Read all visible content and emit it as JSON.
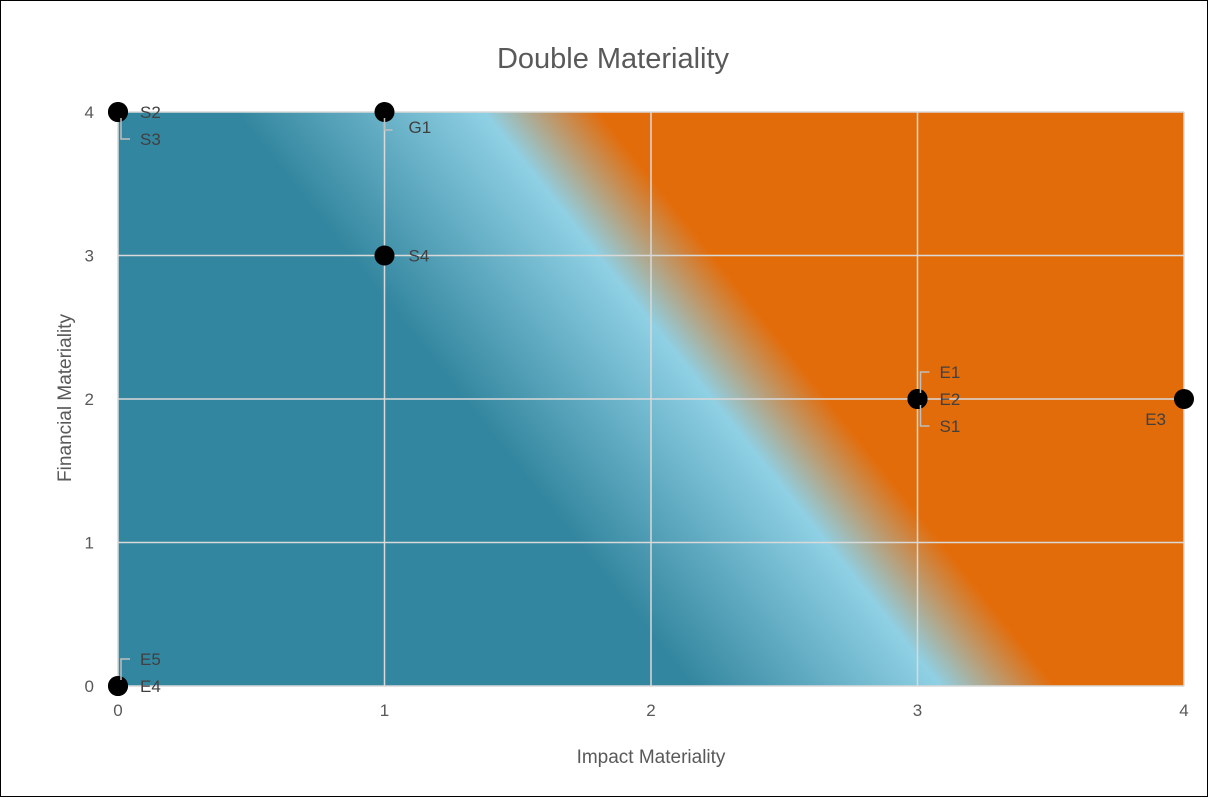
{
  "chart_data": {
    "type": "scatter",
    "title": "Double Materiality",
    "xlabel": "Impact Materiality",
    "ylabel": "Financial Materiality",
    "xlim": [
      0,
      4
    ],
    "ylim": [
      0,
      4
    ],
    "x_ticks": [
      0,
      1,
      2,
      3,
      4
    ],
    "y_ticks": [
      0,
      1,
      2,
      3,
      4
    ],
    "grid": true,
    "legend": "none",
    "colors": {
      "low": "#33869f",
      "mid": "#8fd0e4",
      "high": "#e36c0a",
      "point": "#000000",
      "grid": "#d9d9d9"
    },
    "points": [
      {
        "label": "S2",
        "x": 0,
        "y": 4
      },
      {
        "label": "S3",
        "x": 0,
        "y": 4
      },
      {
        "label": "G1",
        "x": 1,
        "y": 4
      },
      {
        "label": "S4",
        "x": 1,
        "y": 3
      },
      {
        "label": "E1",
        "x": 3,
        "y": 2
      },
      {
        "label": "E2",
        "x": 3,
        "y": 2
      },
      {
        "label": "S1",
        "x": 3,
        "y": 2
      },
      {
        "label": "E3",
        "x": 4,
        "y": 2
      },
      {
        "label": "E5",
        "x": 0,
        "y": 0
      },
      {
        "label": "E4",
        "x": 0,
        "y": 0
      }
    ]
  }
}
